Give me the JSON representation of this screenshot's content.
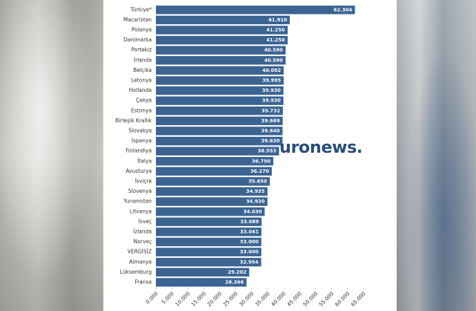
{
  "chart_data": {
    "type": "bar",
    "orientation": "horizontal",
    "color": "#3c6493",
    "watermark": "uronews.",
    "categories": [
      "Türkiye*",
      "Macaristan",
      "Polanya",
      "Danimarka",
      "Portekiz",
      "İrlanda",
      "Belçika",
      "Letonya",
      "Hollanda",
      "Çekya",
      "Estonya",
      "Birleşik Krallık",
      "Slovakya",
      "İspanya",
      "Finlandiya",
      "İtalya",
      "Avusturya",
      "İsviçre",
      "Slovenya",
      "Yunanistan",
      "Litvanya",
      "İsveç",
      "İzlanda",
      "Norveç",
      "VERGİSİZ",
      "Almanya",
      "Lüksemburg",
      "Fransa"
    ],
    "values": [
      62304,
      41910,
      41250,
      41250,
      40590,
      40590,
      40002,
      39995,
      39930,
      39930,
      39732,
      39669,
      39640,
      39630,
      38553,
      36750,
      36270,
      35650,
      34935,
      34920,
      34030,
      33089,
      33041,
      33000,
      33000,
      32954,
      29202,
      28366
    ],
    "value_labels": [
      "62.304",
      "41.910",
      "41.250",
      "41.250",
      "40.590",
      "40.590",
      "40.002",
      "39.995",
      "39.930",
      "39.930",
      "39.732",
      "39.669",
      "39.640",
      "39.630",
      "38.553",
      "36.750",
      "36.270",
      "35.650",
      "34.935",
      "34.920",
      "34.030",
      "33.089",
      "33.041",
      "33.000",
      "33.000",
      "32.954",
      "29.202",
      "28.366"
    ],
    "xlim": [
      0,
      65000
    ],
    "xticks": [
      {
        "value": 0,
        "label": "0.000"
      },
      {
        "value": 5000,
        "label": "5.000"
      },
      {
        "value": 10000,
        "label": "10.000"
      },
      {
        "value": 15000,
        "label": "15.000"
      },
      {
        "value": 20000,
        "label": "20.000"
      },
      {
        "value": 25000,
        "label": "25.000"
      },
      {
        "value": 30000,
        "label": "30.000"
      },
      {
        "value": 35000,
        "label": "35.000"
      },
      {
        "value": 40000,
        "label": "40.000"
      },
      {
        "value": 45000,
        "label": "45.000"
      },
      {
        "value": 50000,
        "label": "50.000"
      },
      {
        "value": 55000,
        "label": "55.000"
      },
      {
        "value": 60000,
        "label": "60.000"
      },
      {
        "value": 65000,
        "label": "65.000"
      }
    ]
  }
}
